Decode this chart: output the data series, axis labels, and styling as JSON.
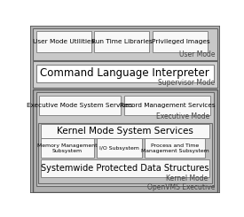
{
  "user_mode_label": "User Mode",
  "supervisor_mode_label": "Supervisor Mode",
  "executive_mode_label": "Executive Mode",
  "kernel_mode_label": "Kernel Mode",
  "openvms_label": "OpenVMS Executive",
  "user_boxes": [
    "User Mode Utilities",
    "Run Time Libraries",
    "Privileged Images"
  ],
  "cli_label": "Command Language Interpreter",
  "exec_boxes": [
    "Executive Mode System Services",
    "Record Management Services"
  ],
  "kernel_main": "Kernel Mode System Services",
  "kernel_sub_boxes": [
    "Memory Management\nSubsystem",
    "I/O Subsystem",
    "Process and Time\nManagement Subsystem"
  ],
  "systemwide_label": "Systemwide Protected Data Structures",
  "color_outer": "#b0b0b0",
  "color_band_user": "#c8c8c8",
  "color_band_super": "#d0d0d0",
  "color_exec_outer": "#b8b8b8",
  "color_exec_inner": "#c8c8c8",
  "color_kernel_band": "#c8c8c8",
  "color_white_box": "#f8f8f8",
  "color_border": "#666666",
  "color_label": "#444444"
}
